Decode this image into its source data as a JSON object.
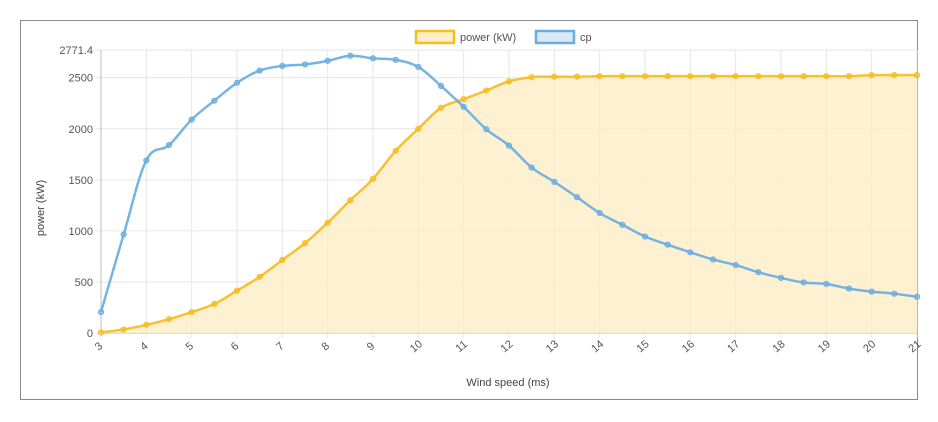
{
  "chart_data": {
    "type": "line",
    "title": "",
    "xlabel": "Wind speed (ms)",
    "ylabel": "power (kW)",
    "x_ticks": [
      "3",
      "4",
      "5",
      "6",
      "7",
      "8",
      "9",
      "10",
      "11",
      "12",
      "13",
      "14",
      "15",
      "16",
      "17",
      "18",
      "19",
      "20",
      "21"
    ],
    "y_ticks": [
      "0",
      "500",
      "1000",
      "1500",
      "2000",
      "2500",
      "2771.4"
    ],
    "xlim": [
      3,
      21
    ],
    "ylim": [
      0,
      2771.4
    ],
    "grid": true,
    "legend_position": "top-center",
    "x": [
      3,
      3.5,
      4,
      4.5,
      5,
      5.5,
      6,
      6.5,
      7,
      7.5,
      8,
      8.5,
      9,
      9.5,
      10,
      10.5,
      11,
      11.5,
      12,
      12.5,
      13,
      13.5,
      14,
      14.5,
      15,
      15.5,
      16,
      16.5,
      17,
      17.5,
      18,
      18.5,
      19,
      19.5,
      20,
      20.5,
      21
    ],
    "series": [
      {
        "name": "power (kW)",
        "color": "#f5bd1f",
        "fill": "#fdefc9",
        "filled": true,
        "values": [
          5,
          35,
          80,
          135,
          205,
          285,
          415,
          550,
          715,
          880,
          1080,
          1300,
          1510,
          1785,
          2000,
          2205,
          2290,
          2375,
          2465,
          2505,
          2510,
          2510,
          2515,
          2515,
          2515,
          2515,
          2515,
          2515,
          2515,
          2515,
          2515,
          2515,
          2515,
          2515,
          2525,
          2525,
          2525
        ]
      },
      {
        "name": "cp",
        "color": "#6aaee0",
        "fill": "#dbe9f6",
        "filled": false,
        "values": [
          205,
          965,
          1690,
          1840,
          2090,
          2275,
          2450,
          2570,
          2615,
          2630,
          2665,
          2715,
          2690,
          2675,
          2605,
          2420,
          2215,
          1995,
          1835,
          1620,
          1480,
          1330,
          1175,
          1060,
          945,
          865,
          790,
          720,
          665,
          595,
          540,
          495,
          480,
          435,
          405,
          385,
          355
        ]
      }
    ]
  }
}
